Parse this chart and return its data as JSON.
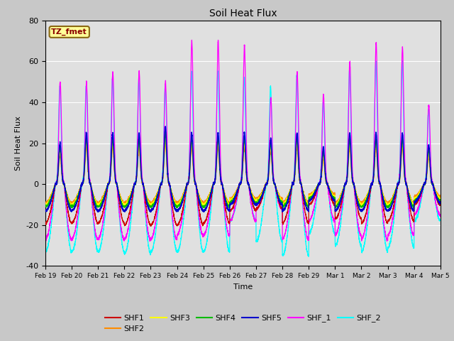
{
  "title": "Soil Heat Flux",
  "ylabel": "Soil Heat Flux",
  "xlabel": "Time",
  "ylim": [
    -40,
    80
  ],
  "annotation_text": "TZ_fmet",
  "annotation_bg": "#FFFF99",
  "annotation_border": "#8B6914",
  "fig_bg": "#C8C8C8",
  "plot_bg": "#E0E0E0",
  "series": [
    {
      "name": "SHF1",
      "color": "#CC0000"
    },
    {
      "name": "SHF2",
      "color": "#FF8C00"
    },
    {
      "name": "SHF3",
      "color": "#FFFF00"
    },
    {
      "name": "SHF4",
      "color": "#00BB00"
    },
    {
      "name": "SHF5",
      "color": "#0000CC"
    },
    {
      "name": "SHF_1",
      "color": "#FF00FF"
    },
    {
      "name": "SHF_2",
      "color": "#00FFFF"
    }
  ],
  "xtick_labels": [
    "Feb 19",
    "Feb 20",
    "Feb 21",
    "Feb 22",
    "Feb 23",
    "Feb 24",
    "Feb 25",
    "Feb 26",
    "Feb 27",
    "Feb 28",
    "Feb 29",
    "Mar 1",
    "Mar 2",
    "Mar 3",
    "Mar 4",
    "Mar 5"
  ],
  "ytick_labels": [
    -40,
    -20,
    0,
    20,
    40,
    60,
    80
  ],
  "n_days": 15,
  "n_points_per_day": 288
}
